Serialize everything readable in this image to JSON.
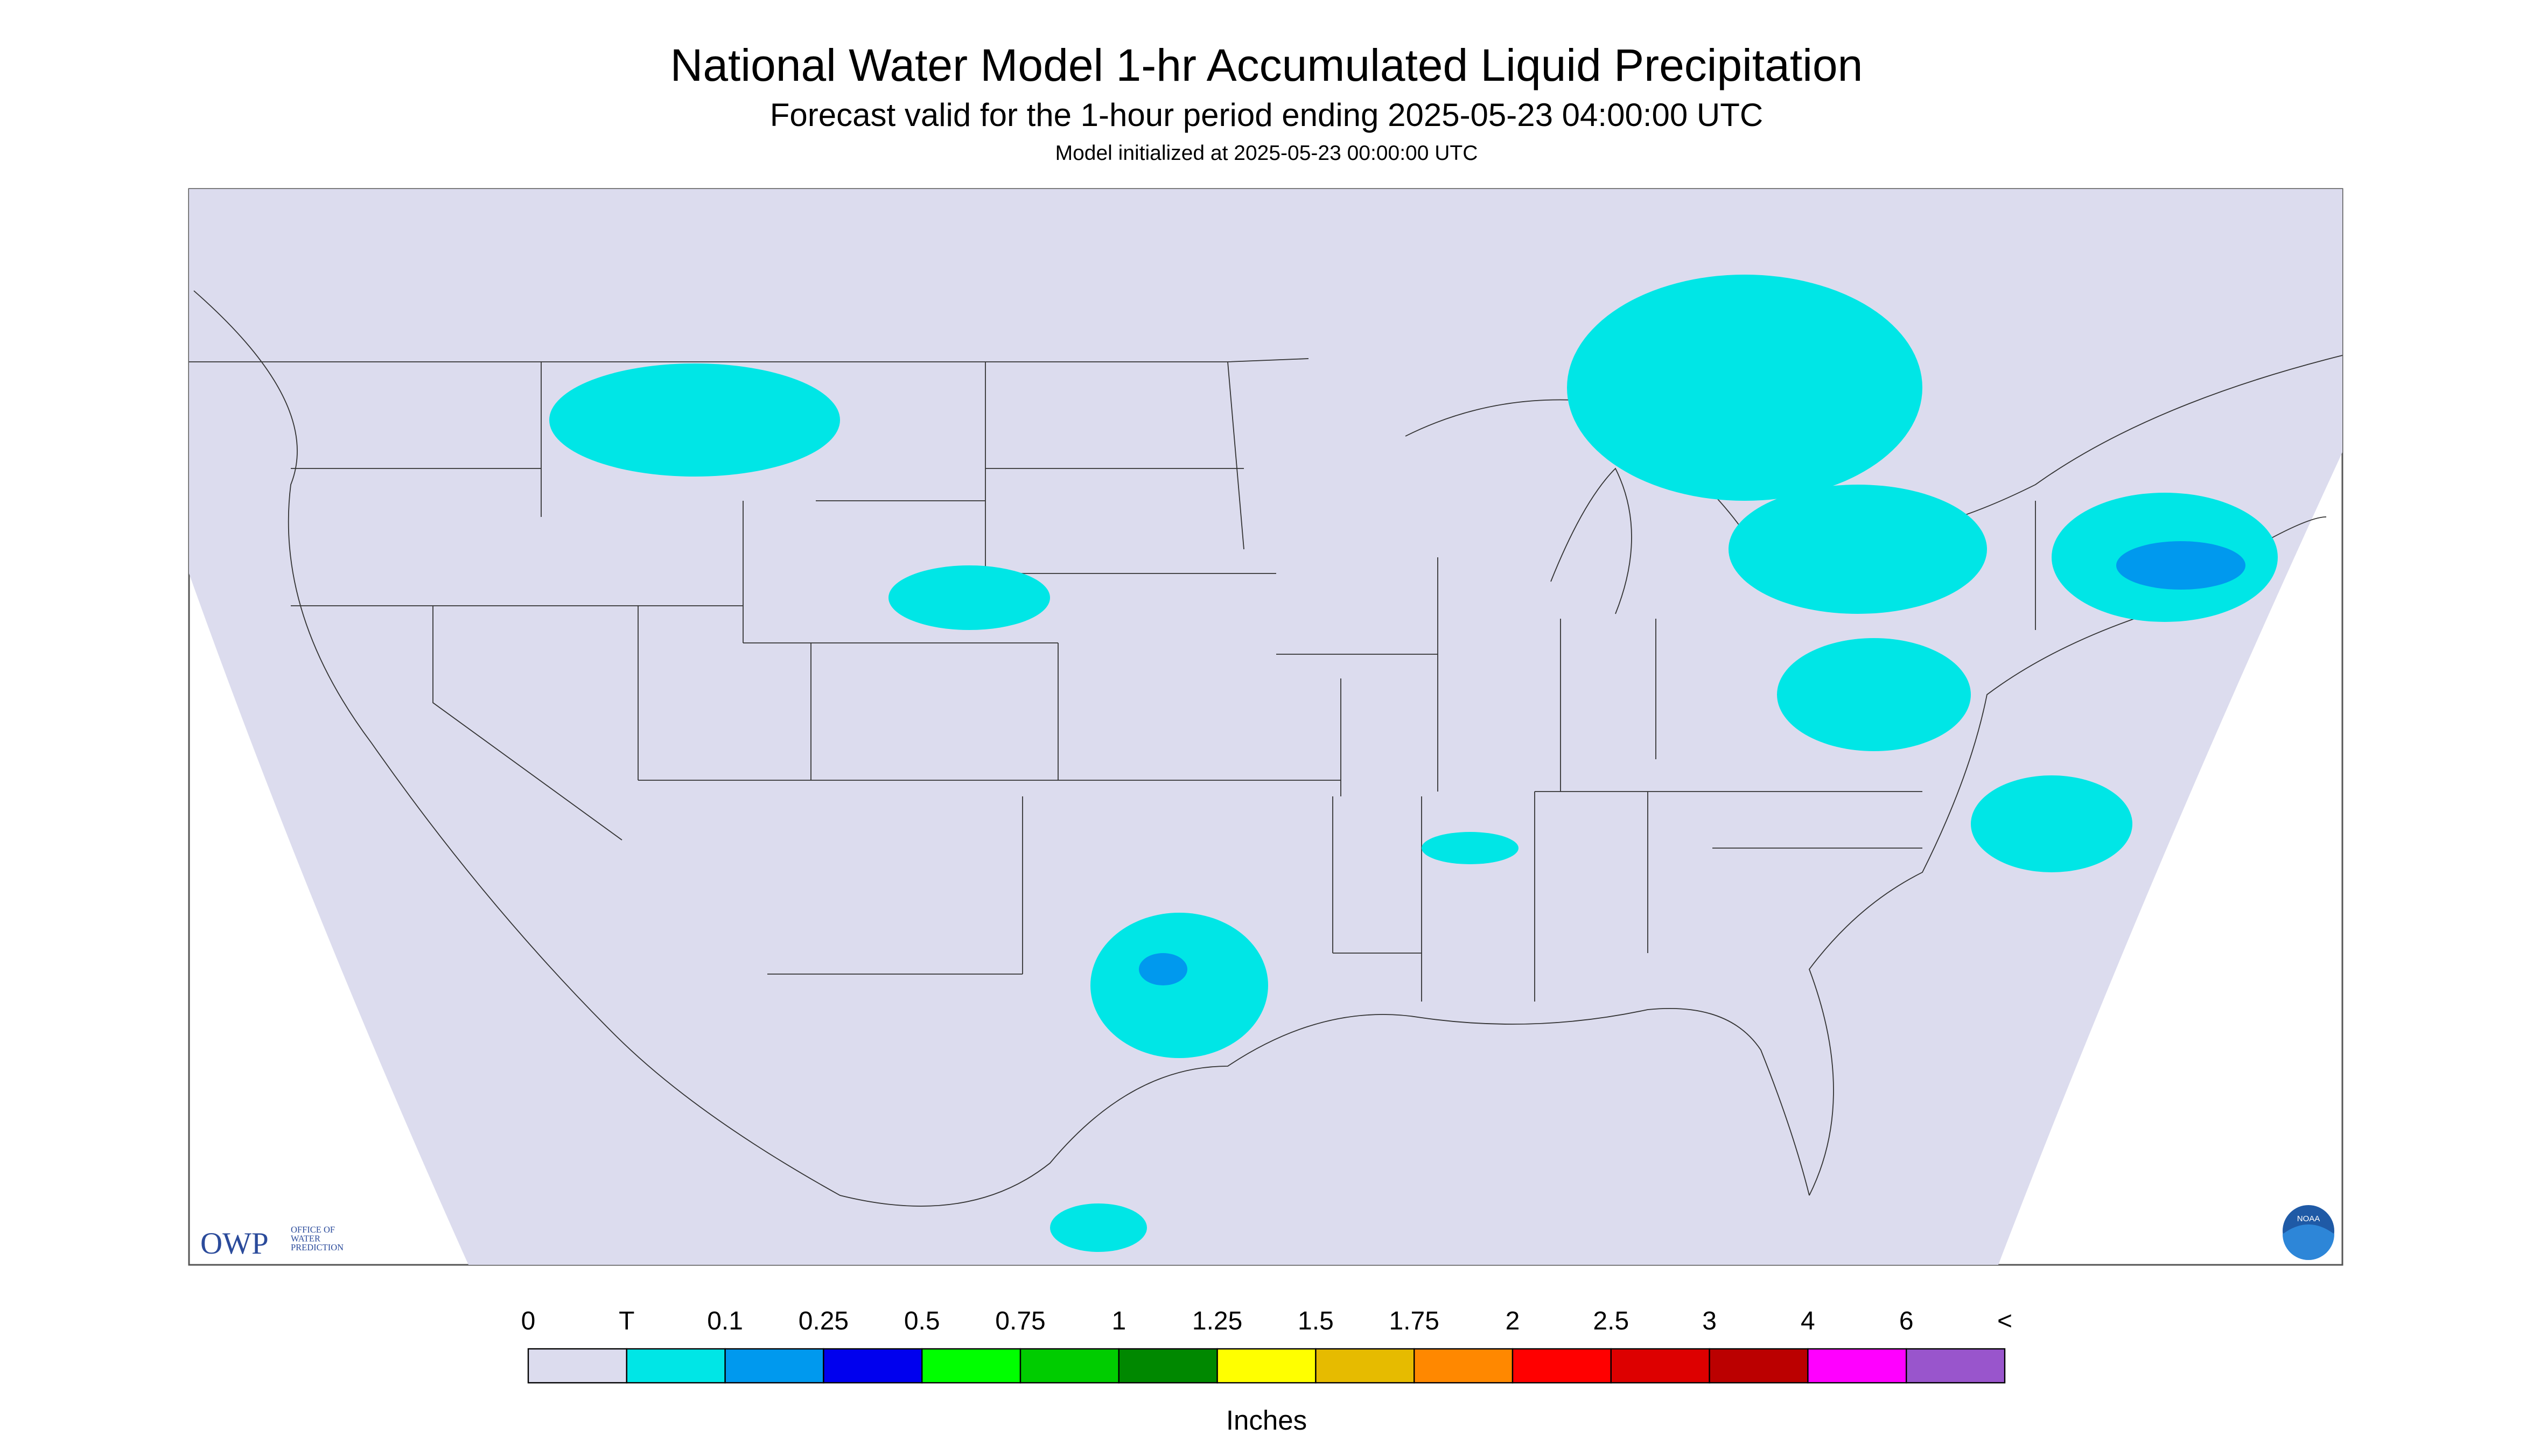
{
  "header": {
    "title": "National Water Model 1-hr Accumulated Liquid Precipitation",
    "subtitle": "Forecast valid for the 1-hour period ending 2025-05-23 04:00:00 UTC",
    "note": "Model initialized at 2025-05-23 00:00:00 UTC"
  },
  "logo": {
    "short": "OWP",
    "lines": [
      "OFFICE OF",
      "WATER",
      "PREDICTION"
    ],
    "noaa": "NOAA"
  },
  "legend": {
    "labels": [
      "0",
      "T",
      "0.1",
      "0.25",
      "0.5",
      "0.75",
      "1",
      "1.25",
      "1.5",
      "1.75",
      "2",
      "2.5",
      "3",
      "4",
      "6",
      "<"
    ],
    "colors": [
      "#dcdcee",
      "#00e6e6",
      "#0099ee",
      "#0000ee",
      "#00ff00",
      "#00cc00",
      "#008800",
      "#ffff00",
      "#e6bb00",
      "#ff8800",
      "#ff0000",
      "#dd0000",
      "#bb0000",
      "#ff00ff",
      "#9955cc"
    ],
    "unit": "Inches"
  }
}
